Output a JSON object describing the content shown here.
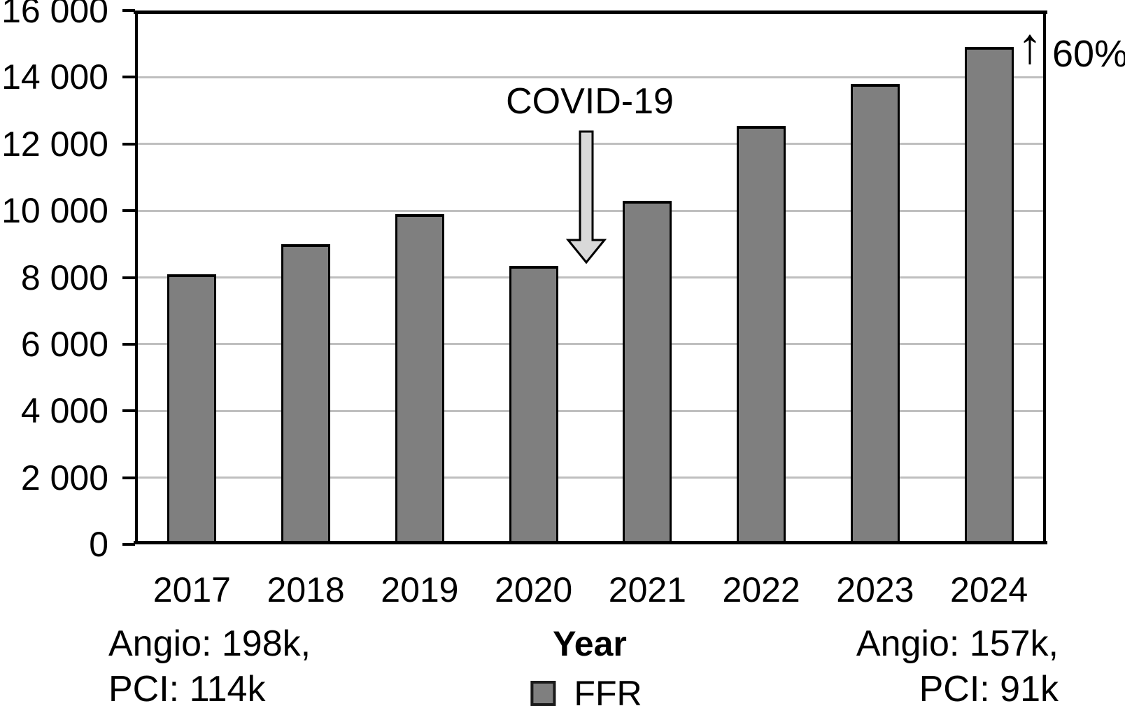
{
  "chart_data": {
    "type": "bar",
    "title": "",
    "categories": [
      "2017",
      "2018",
      "2019",
      "2020",
      "2021",
      "2022",
      "2023",
      "2024"
    ],
    "series": [
      {
        "name": "FFR",
        "values": [
          8100,
          9000,
          9900,
          8350,
          10300,
          12550,
          13800,
          14900
        ]
      }
    ],
    "xlabel": "Year",
    "ylabel": "",
    "ylim": [
      0,
      16000
    ],
    "ytick_step": 2000,
    "ytick_labels": [
      "0",
      "2 000",
      "4 000",
      "6 000",
      "8 000",
      "10 000",
      "12 000",
      "14 000",
      "16 000"
    ],
    "grid": "horizontal",
    "legend_position": "bottom",
    "bar_color": "#7f7f7f",
    "bar_border_color": "#000000",
    "gridline_color": "#bfbfbf",
    "annotations": [
      {
        "text": "COVID-19",
        "type": "down-arrow",
        "arrow_fill": "#d9d9d9",
        "location": "between 2020 and 2021 bars"
      },
      {
        "text": "60%",
        "type": "up-arrow",
        "location": "top right beside 2024 bar"
      }
    ]
  },
  "annotations": {
    "covid_label": "COVID-19",
    "up_arrow": "↑",
    "increase_value": "60%"
  },
  "footnotes": {
    "left_line1": "Angio: 198k,",
    "left_line2": "PCI: 114k",
    "right_line1": "Angio: 157k,",
    "right_line2": "PCI: 91k"
  },
  "legend": {
    "label": "FFR"
  }
}
